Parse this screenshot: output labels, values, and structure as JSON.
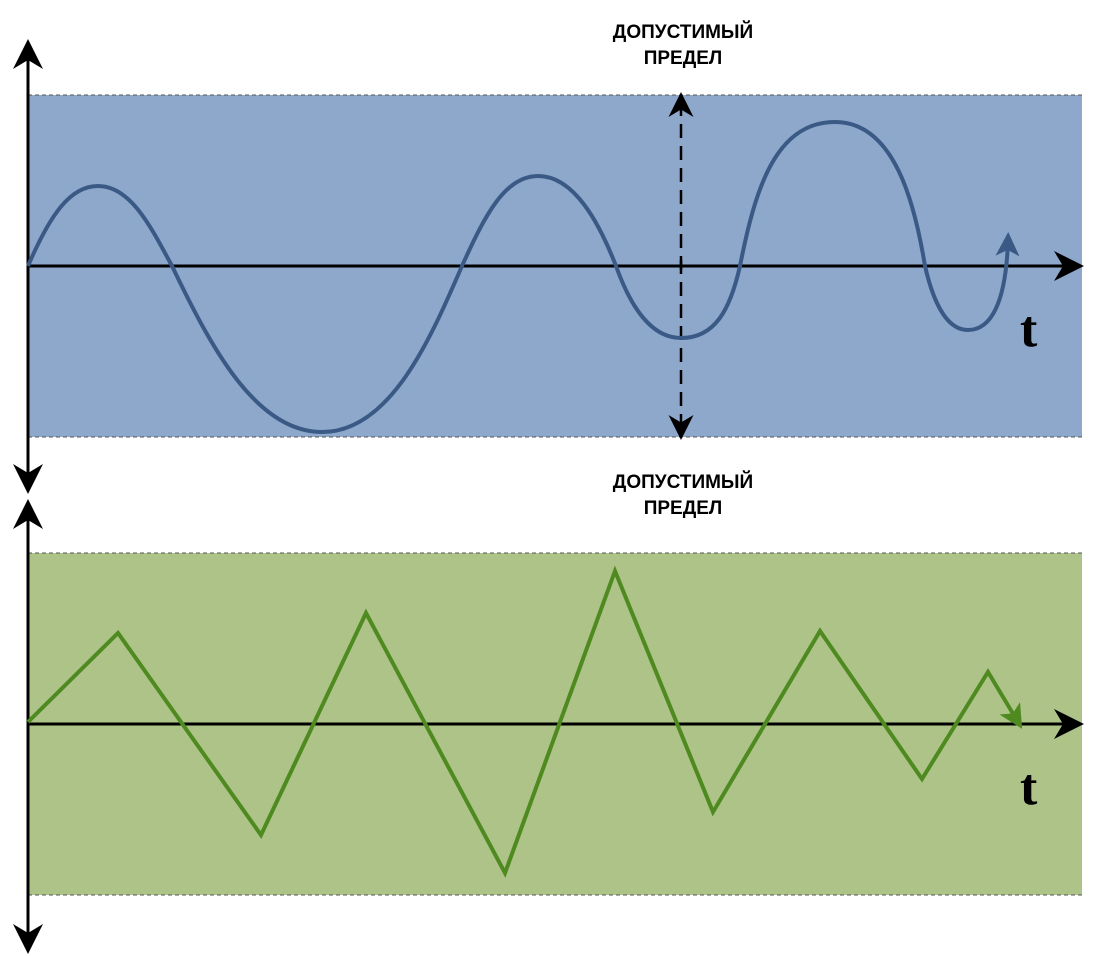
{
  "panels": [
    {
      "label_line1": "ДОПУСТИМЫЙ",
      "label_line2": "ПРЕДЕЛ",
      "axis_label": "t",
      "band_color": "#8da8cb",
      "curve_color": "#3a5a85",
      "curve_type": "smooth-wave"
    },
    {
      "label_line1": "ДОПУСТИМЫЙ",
      "label_line2": "ПРЕДЕЛ",
      "axis_label": "t",
      "band_color": "#adc387",
      "curve_color": "#4f8a21",
      "curve_type": "zigzag"
    }
  ]
}
